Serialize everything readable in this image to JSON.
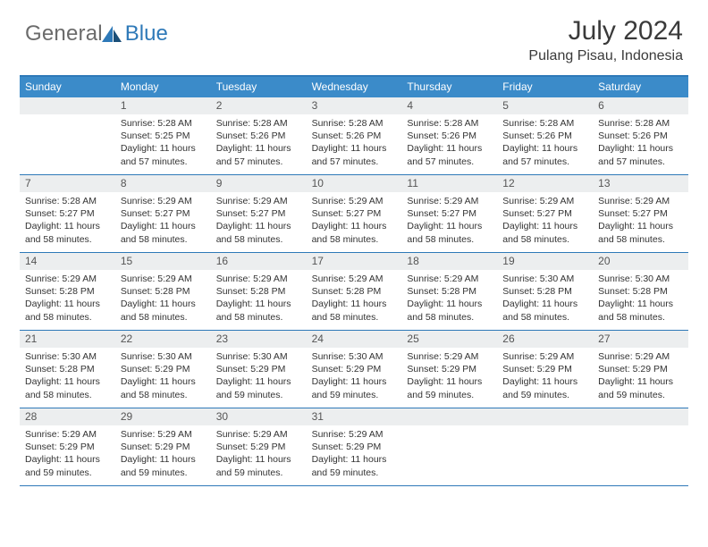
{
  "brand": {
    "general": "General",
    "blue": "Blue"
  },
  "title": {
    "month": "July 2024",
    "location": "Pulang Pisau, Indonesia"
  },
  "colors": {
    "header_bg": "#3b8bc9",
    "border": "#2e79b8",
    "daynum_bg": "#eceeef",
    "text": "#333333",
    "logo_gray": "#6b6b6b",
    "logo_blue": "#2e79b8",
    "page_bg": "#ffffff"
  },
  "typography": {
    "title_fontsize": 30,
    "location_fontsize": 16,
    "dayheader_fontsize": 12,
    "daynum_fontsize": 12,
    "body_fontsize": 10.5
  },
  "day_names": [
    "Sunday",
    "Monday",
    "Tuesday",
    "Wednesday",
    "Thursday",
    "Friday",
    "Saturday"
  ],
  "weeks": [
    [
      {
        "n": "",
        "sunrise": "",
        "sunset": "",
        "daylight": ""
      },
      {
        "n": "1",
        "sunrise": "Sunrise: 5:28 AM",
        "sunset": "Sunset: 5:25 PM",
        "daylight": "Daylight: 11 hours and 57 minutes."
      },
      {
        "n": "2",
        "sunrise": "Sunrise: 5:28 AM",
        "sunset": "Sunset: 5:26 PM",
        "daylight": "Daylight: 11 hours and 57 minutes."
      },
      {
        "n": "3",
        "sunrise": "Sunrise: 5:28 AM",
        "sunset": "Sunset: 5:26 PM",
        "daylight": "Daylight: 11 hours and 57 minutes."
      },
      {
        "n": "4",
        "sunrise": "Sunrise: 5:28 AM",
        "sunset": "Sunset: 5:26 PM",
        "daylight": "Daylight: 11 hours and 57 minutes."
      },
      {
        "n": "5",
        "sunrise": "Sunrise: 5:28 AM",
        "sunset": "Sunset: 5:26 PM",
        "daylight": "Daylight: 11 hours and 57 minutes."
      },
      {
        "n": "6",
        "sunrise": "Sunrise: 5:28 AM",
        "sunset": "Sunset: 5:26 PM",
        "daylight": "Daylight: 11 hours and 57 minutes."
      }
    ],
    [
      {
        "n": "7",
        "sunrise": "Sunrise: 5:28 AM",
        "sunset": "Sunset: 5:27 PM",
        "daylight": "Daylight: 11 hours and 58 minutes."
      },
      {
        "n": "8",
        "sunrise": "Sunrise: 5:29 AM",
        "sunset": "Sunset: 5:27 PM",
        "daylight": "Daylight: 11 hours and 58 minutes."
      },
      {
        "n": "9",
        "sunrise": "Sunrise: 5:29 AM",
        "sunset": "Sunset: 5:27 PM",
        "daylight": "Daylight: 11 hours and 58 minutes."
      },
      {
        "n": "10",
        "sunrise": "Sunrise: 5:29 AM",
        "sunset": "Sunset: 5:27 PM",
        "daylight": "Daylight: 11 hours and 58 minutes."
      },
      {
        "n": "11",
        "sunrise": "Sunrise: 5:29 AM",
        "sunset": "Sunset: 5:27 PM",
        "daylight": "Daylight: 11 hours and 58 minutes."
      },
      {
        "n": "12",
        "sunrise": "Sunrise: 5:29 AM",
        "sunset": "Sunset: 5:27 PM",
        "daylight": "Daylight: 11 hours and 58 minutes."
      },
      {
        "n": "13",
        "sunrise": "Sunrise: 5:29 AM",
        "sunset": "Sunset: 5:27 PM",
        "daylight": "Daylight: 11 hours and 58 minutes."
      }
    ],
    [
      {
        "n": "14",
        "sunrise": "Sunrise: 5:29 AM",
        "sunset": "Sunset: 5:28 PM",
        "daylight": "Daylight: 11 hours and 58 minutes."
      },
      {
        "n": "15",
        "sunrise": "Sunrise: 5:29 AM",
        "sunset": "Sunset: 5:28 PM",
        "daylight": "Daylight: 11 hours and 58 minutes."
      },
      {
        "n": "16",
        "sunrise": "Sunrise: 5:29 AM",
        "sunset": "Sunset: 5:28 PM",
        "daylight": "Daylight: 11 hours and 58 minutes."
      },
      {
        "n": "17",
        "sunrise": "Sunrise: 5:29 AM",
        "sunset": "Sunset: 5:28 PM",
        "daylight": "Daylight: 11 hours and 58 minutes."
      },
      {
        "n": "18",
        "sunrise": "Sunrise: 5:29 AM",
        "sunset": "Sunset: 5:28 PM",
        "daylight": "Daylight: 11 hours and 58 minutes."
      },
      {
        "n": "19",
        "sunrise": "Sunrise: 5:30 AM",
        "sunset": "Sunset: 5:28 PM",
        "daylight": "Daylight: 11 hours and 58 minutes."
      },
      {
        "n": "20",
        "sunrise": "Sunrise: 5:30 AM",
        "sunset": "Sunset: 5:28 PM",
        "daylight": "Daylight: 11 hours and 58 minutes."
      }
    ],
    [
      {
        "n": "21",
        "sunrise": "Sunrise: 5:30 AM",
        "sunset": "Sunset: 5:28 PM",
        "daylight": "Daylight: 11 hours and 58 minutes."
      },
      {
        "n": "22",
        "sunrise": "Sunrise: 5:30 AM",
        "sunset": "Sunset: 5:29 PM",
        "daylight": "Daylight: 11 hours and 58 minutes."
      },
      {
        "n": "23",
        "sunrise": "Sunrise: 5:30 AM",
        "sunset": "Sunset: 5:29 PM",
        "daylight": "Daylight: 11 hours and 59 minutes."
      },
      {
        "n": "24",
        "sunrise": "Sunrise: 5:30 AM",
        "sunset": "Sunset: 5:29 PM",
        "daylight": "Daylight: 11 hours and 59 minutes."
      },
      {
        "n": "25",
        "sunrise": "Sunrise: 5:29 AM",
        "sunset": "Sunset: 5:29 PM",
        "daylight": "Daylight: 11 hours and 59 minutes."
      },
      {
        "n": "26",
        "sunrise": "Sunrise: 5:29 AM",
        "sunset": "Sunset: 5:29 PM",
        "daylight": "Daylight: 11 hours and 59 minutes."
      },
      {
        "n": "27",
        "sunrise": "Sunrise: 5:29 AM",
        "sunset": "Sunset: 5:29 PM",
        "daylight": "Daylight: 11 hours and 59 minutes."
      }
    ],
    [
      {
        "n": "28",
        "sunrise": "Sunrise: 5:29 AM",
        "sunset": "Sunset: 5:29 PM",
        "daylight": "Daylight: 11 hours and 59 minutes."
      },
      {
        "n": "29",
        "sunrise": "Sunrise: 5:29 AM",
        "sunset": "Sunset: 5:29 PM",
        "daylight": "Daylight: 11 hours and 59 minutes."
      },
      {
        "n": "30",
        "sunrise": "Sunrise: 5:29 AM",
        "sunset": "Sunset: 5:29 PM",
        "daylight": "Daylight: 11 hours and 59 minutes."
      },
      {
        "n": "31",
        "sunrise": "Sunrise: 5:29 AM",
        "sunset": "Sunset: 5:29 PM",
        "daylight": "Daylight: 11 hours and 59 minutes."
      },
      {
        "n": "",
        "sunrise": "",
        "sunset": "",
        "daylight": ""
      },
      {
        "n": "",
        "sunrise": "",
        "sunset": "",
        "daylight": ""
      },
      {
        "n": "",
        "sunrise": "",
        "sunset": "",
        "daylight": ""
      }
    ]
  ]
}
